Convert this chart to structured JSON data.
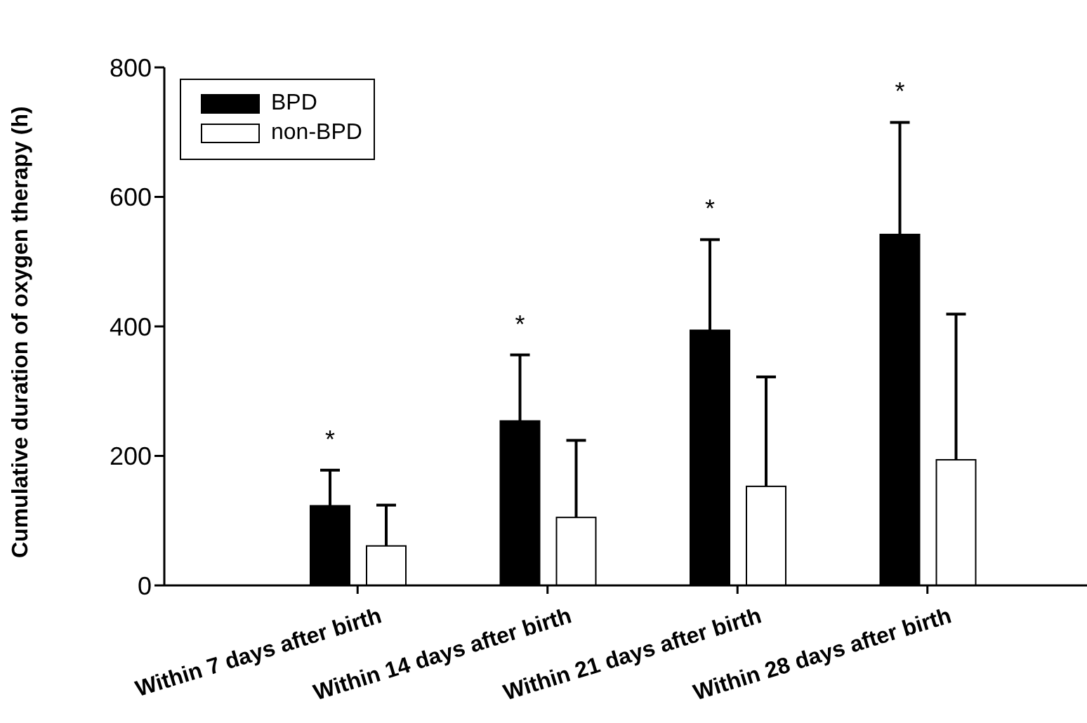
{
  "chart_data": {
    "type": "bar",
    "ylabel": "Cumulative  duration of oxygen therapy (h)",
    "categories": [
      "Within 7 days after birth",
      "Within 14 days after birth",
      "Within 21 days after birth",
      "Within 28 days after birth"
    ],
    "series": [
      {
        "name": "BPD",
        "color": "#000000",
        "values": [
          123,
          254,
          394,
          542
        ],
        "errors": [
          [
            123,
            178
          ],
          [
            254,
            356
          ],
          [
            394,
            534
          ],
          [
            542,
            715
          ]
        ]
      },
      {
        "name": "non-BPD",
        "color": "#ffffff",
        "values": [
          61,
          105,
          153,
          194
        ],
        "errors": [
          [
            61,
            124
          ],
          [
            105,
            224
          ],
          [
            153,
            322
          ],
          [
            194,
            419
          ]
        ]
      }
    ],
    "ylim": [
      0,
      800
    ],
    "yticks": [
      0,
      200,
      400,
      600,
      800
    ],
    "grid": false,
    "legend": "top left",
    "annotations": [
      "*",
      "*",
      "*",
      "*"
    ]
  }
}
